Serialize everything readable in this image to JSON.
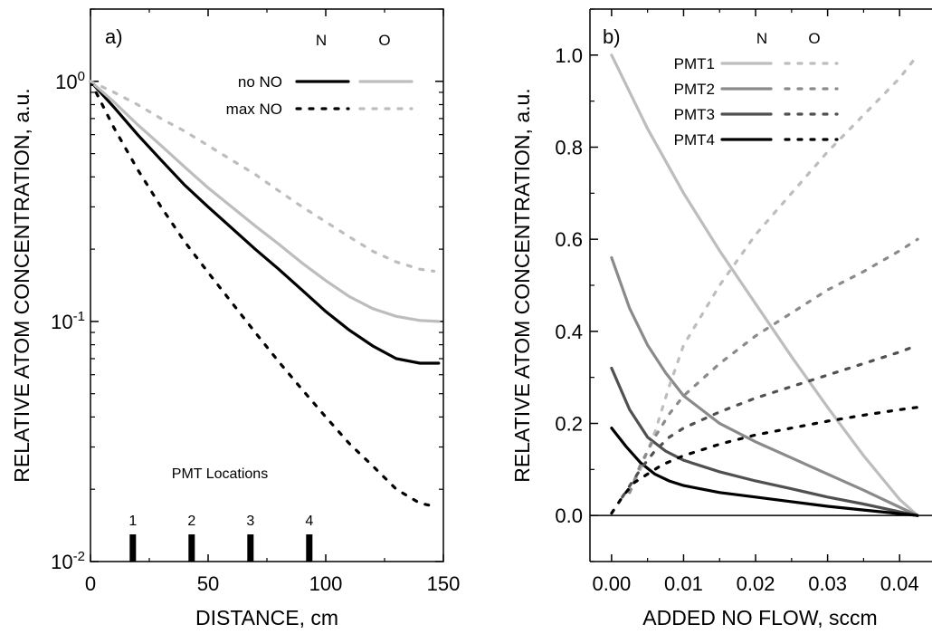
{
  "chart_data": [
    {
      "type": "line",
      "panel_label": "a)",
      "xlabel": "DISTANCE, cm",
      "ylabel": "RELATIVE ATOM CONCENTRATION, a.u.",
      "xlim": [
        0,
        150
      ],
      "ylim": [
        0.01,
        2
      ],
      "yscale": "log",
      "xticks": [
        {
          "v": 0,
          "label": "0"
        },
        {
          "v": 50,
          "label": "50"
        },
        {
          "v": 100,
          "label": "100"
        },
        {
          "v": 150,
          "label": "150"
        }
      ],
      "yticks": [
        {
          "v": 1,
          "base": "10",
          "exp": "0"
        },
        {
          "v": 0.1,
          "base": "10",
          "exp": "-1"
        },
        {
          "v": 0.01,
          "base": "10",
          "exp": "-2"
        }
      ],
      "legend_header": [
        "N",
        "O"
      ],
      "legend_rows": [
        "no NO",
        "max NO"
      ],
      "series": [
        {
          "key": "N-noNO",
          "color": "#000000",
          "style": "solid",
          "x": [
            0,
            10,
            20,
            30,
            40,
            50,
            60,
            70,
            80,
            90,
            100,
            110,
            120,
            130,
            140,
            148
          ],
          "y": [
            1.0,
            0.78,
            0.6,
            0.47,
            0.37,
            0.3,
            0.245,
            0.2,
            0.165,
            0.135,
            0.11,
            0.092,
            0.079,
            0.07,
            0.067,
            0.067
          ]
        },
        {
          "key": "O-noNO",
          "color": "#bdbdbd",
          "style": "solid",
          "x": [
            0,
            10,
            20,
            30,
            40,
            50,
            60,
            70,
            80,
            90,
            100,
            110,
            120,
            130,
            140,
            148
          ],
          "y": [
            1.0,
            0.82,
            0.66,
            0.54,
            0.44,
            0.36,
            0.3,
            0.25,
            0.21,
            0.175,
            0.148,
            0.127,
            0.113,
            0.105,
            0.101,
            0.1
          ]
        },
        {
          "key": "N-maxNO",
          "color": "#000000",
          "style": "dotted",
          "x": [
            0,
            10,
            20,
            30,
            40,
            50,
            60,
            70,
            80,
            90,
            100,
            110,
            120,
            130,
            140,
            146
          ],
          "y": [
            1.0,
            0.64,
            0.43,
            0.3,
            0.215,
            0.16,
            0.12,
            0.09,
            0.068,
            0.052,
            0.04,
            0.031,
            0.025,
            0.02,
            0.0175,
            0.017
          ]
        },
        {
          "key": "O-maxNO",
          "color": "#bdbdbd",
          "style": "dotted",
          "x": [
            0,
            10,
            20,
            30,
            40,
            50,
            60,
            70,
            80,
            90,
            100,
            110,
            120,
            130,
            140,
            146
          ],
          "y": [
            1.0,
            0.9,
            0.8,
            0.7,
            0.62,
            0.54,
            0.47,
            0.41,
            0.35,
            0.3,
            0.26,
            0.225,
            0.196,
            0.177,
            0.165,
            0.162
          ]
        }
      ],
      "annotation_title": "PMT Locations",
      "pmt_markers": [
        {
          "label": "1",
          "x": 18
        },
        {
          "label": "2",
          "x": 43
        },
        {
          "label": "3",
          "x": 68
        },
        {
          "label": "4",
          "x": 93
        }
      ]
    },
    {
      "type": "line",
      "panel_label": "b)",
      "xlabel": "ADDED NO FLOW, sccm",
      "ylabel": "RELATIVE ATOM CONCENTRATION, a.u.",
      "xlim": [
        -0.003,
        0.045
      ],
      "ylim": [
        -0.1,
        1.1
      ],
      "xticks": [
        {
          "v": 0,
          "label": "0.00"
        },
        {
          "v": 0.01,
          "label": "0.01"
        },
        {
          "v": 0.02,
          "label": "0.02"
        },
        {
          "v": 0.03,
          "label": "0.03"
        },
        {
          "v": 0.04,
          "label": "0.04"
        }
      ],
      "yticks": [
        {
          "v": 0,
          "label": "0.0"
        },
        {
          "v": 0.2,
          "label": "0.2"
        },
        {
          "v": 0.4,
          "label": "0.4"
        },
        {
          "v": 0.6,
          "label": "0.6"
        },
        {
          "v": 0.8,
          "label": "0.8"
        },
        {
          "v": 1.0,
          "label": "1.0"
        }
      ],
      "zero_line": 0,
      "legend_header": [
        "N",
        "O"
      ],
      "legend_rows": [
        {
          "label": "PMT1",
          "color": "#bdbdbd"
        },
        {
          "label": "PMT2",
          "color": "#8a8a8a"
        },
        {
          "label": "PMT3",
          "color": "#505050"
        },
        {
          "label": "PMT4",
          "color": "#000000"
        }
      ],
      "series": [
        {
          "key": "PMT1-N",
          "color": "#bdbdbd",
          "style": "solid",
          "x": [
            0,
            0.005,
            0.01,
            0.015,
            0.02,
            0.025,
            0.03,
            0.035,
            0.04,
            0.0425
          ],
          "y": [
            1.0,
            0.84,
            0.7,
            0.575,
            0.46,
            0.345,
            0.235,
            0.13,
            0.035,
            0.0
          ]
        },
        {
          "key": "PMT2-N",
          "color": "#8a8a8a",
          "style": "solid",
          "x": [
            0,
            0.0025,
            0.005,
            0.0075,
            0.01,
            0.015,
            0.02,
            0.025,
            0.03,
            0.035,
            0.04,
            0.0425
          ],
          "y": [
            0.56,
            0.45,
            0.37,
            0.31,
            0.26,
            0.2,
            0.16,
            0.125,
            0.09,
            0.055,
            0.018,
            0.0
          ]
        },
        {
          "key": "PMT3-N",
          "color": "#505050",
          "style": "solid",
          "x": [
            0,
            0.0025,
            0.005,
            0.0075,
            0.01,
            0.015,
            0.02,
            0.025,
            0.03,
            0.035,
            0.04,
            0.0425
          ],
          "y": [
            0.32,
            0.23,
            0.17,
            0.14,
            0.12,
            0.095,
            0.075,
            0.058,
            0.04,
            0.025,
            0.008,
            0.0
          ]
        },
        {
          "key": "PMT4-N",
          "color": "#000000",
          "style": "solid",
          "x": [
            0,
            0.002,
            0.004,
            0.006,
            0.008,
            0.01,
            0.015,
            0.02,
            0.025,
            0.03,
            0.035,
            0.04,
            0.0425
          ],
          "y": [
            0.19,
            0.15,
            0.115,
            0.09,
            0.075,
            0.065,
            0.05,
            0.04,
            0.03,
            0.02,
            0.012,
            0.004,
            0.0
          ]
        },
        {
          "key": "PMT1-O",
          "color": "#bdbdbd",
          "style": "dotted",
          "x": [
            0.0025,
            0.004,
            0.006,
            0.008,
            0.01,
            0.015,
            0.02,
            0.025,
            0.03,
            0.035,
            0.04,
            0.0425
          ],
          "y": [
            0.05,
            0.1,
            0.18,
            0.28,
            0.37,
            0.5,
            0.61,
            0.7,
            0.79,
            0.87,
            0.95,
            1.0
          ]
        },
        {
          "key": "PMT2-O",
          "color": "#8a8a8a",
          "style": "dotted",
          "x": [
            0.0025,
            0.004,
            0.006,
            0.008,
            0.01,
            0.015,
            0.02,
            0.025,
            0.03,
            0.035,
            0.04,
            0.0425
          ],
          "y": [
            0.05,
            0.11,
            0.17,
            0.22,
            0.26,
            0.33,
            0.39,
            0.44,
            0.49,
            0.53,
            0.575,
            0.6
          ]
        },
        {
          "key": "PMT3-O",
          "color": "#505050",
          "style": "dotted",
          "x": [
            0.0015,
            0.004,
            0.006,
            0.008,
            0.01,
            0.015,
            0.02,
            0.025,
            0.03,
            0.035,
            0.04,
            0.0425
          ],
          "y": [
            0.04,
            0.1,
            0.14,
            0.17,
            0.19,
            0.225,
            0.255,
            0.28,
            0.305,
            0.33,
            0.355,
            0.37
          ]
        },
        {
          "key": "PMT4-O",
          "color": "#000000",
          "style": "dotted",
          "x": [
            0.0,
            0.0015,
            0.003,
            0.005,
            0.007,
            0.01,
            0.015,
            0.02,
            0.025,
            0.03,
            0.035,
            0.04,
            0.0425
          ],
          "y": [
            0.005,
            0.04,
            0.07,
            0.09,
            0.11,
            0.13,
            0.155,
            0.175,
            0.19,
            0.205,
            0.218,
            0.23,
            0.235
          ]
        }
      ]
    }
  ]
}
